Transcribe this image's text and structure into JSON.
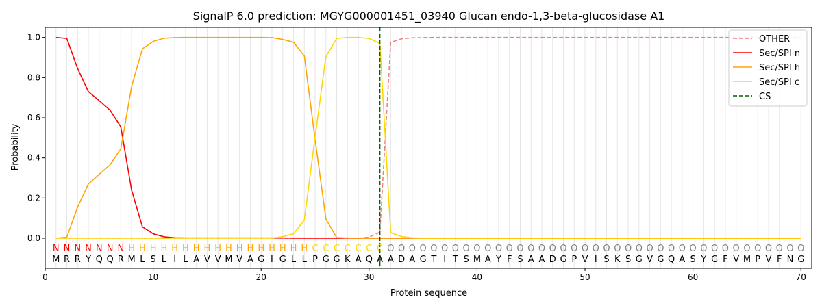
{
  "chart_data": {
    "type": "line",
    "title": "SignalP 6.0 prediction: MGYG000001451_03940 Glucan endo-1,3-beta-glucosidase A1",
    "xlabel": "Protein sequence",
    "ylabel": "Probability",
    "xlim": [
      0,
      71
    ],
    "ylim": [
      -0.15,
      1.05
    ],
    "x_ticks": [
      0,
      10,
      20,
      30,
      40,
      50,
      60,
      70
    ],
    "y_ticks": [
      0.0,
      0.2,
      0.4,
      0.6,
      0.8,
      1.0
    ],
    "grid": "vertical lines at each residue",
    "legend_position": "top-right",
    "sequence": [
      "M",
      "R",
      "R",
      "Y",
      "Q",
      "Q",
      "R",
      "M",
      "L",
      "S",
      "L",
      "I",
      "L",
      "A",
      "V",
      "V",
      "M",
      "V",
      "A",
      "G",
      "I",
      "G",
      "L",
      "L",
      "P",
      "G",
      "G",
      "K",
      "A",
      "Q",
      "A",
      "A",
      "D",
      "A",
      "G",
      "T",
      "I",
      "T",
      "S",
      "M",
      "A",
      "Y",
      "F",
      "S",
      "A",
      "A",
      "D",
      "G",
      "P",
      "V",
      "I",
      "S",
      "K",
      "S",
      "G",
      "V",
      "G",
      "Q",
      "A",
      "S",
      "Y",
      "G",
      "F",
      "V",
      "M",
      "P",
      "V",
      "F",
      "N",
      "G"
    ],
    "region_labels": [
      "N",
      "N",
      "N",
      "N",
      "N",
      "N",
      "N",
      "H",
      "H",
      "H",
      "H",
      "H",
      "H",
      "H",
      "H",
      "H",
      "H",
      "H",
      "H",
      "H",
      "H",
      "H",
      "H",
      "H",
      "C",
      "C",
      "C",
      "C",
      "C",
      "C",
      "C",
      "O",
      "O",
      "O",
      "O",
      "O",
      "O",
      "O",
      "O",
      "O",
      "O",
      "O",
      "O",
      "O",
      "O",
      "O",
      "O",
      "O",
      "O",
      "O",
      "O",
      "O",
      "O",
      "O",
      "O",
      "O",
      "O",
      "O",
      "O",
      "O",
      "O",
      "O",
      "O",
      "O",
      "O",
      "O",
      "O",
      "O",
      "O",
      "O"
    ],
    "region_colors": {
      "N": "#ff0000",
      "H": "#ffa500",
      "C": "#ffd700",
      "O": "#808080"
    },
    "series": [
      {
        "name": "OTHER",
        "color": "#f08080",
        "dash": "dashed",
        "values": [
          0,
          0,
          0,
          0,
          0,
          0,
          0,
          0,
          0,
          0,
          0,
          0,
          0,
          0,
          0,
          0,
          0,
          0,
          0,
          0,
          0,
          0,
          0,
          0,
          0,
          0,
          0,
          0,
          0,
          0.005,
          0.03,
          0.975,
          0.993,
          0.998,
          0.999,
          1,
          1,
          1,
          1,
          1,
          1,
          1,
          1,
          1,
          1,
          1,
          1,
          1,
          1,
          1,
          1,
          1,
          1,
          1,
          1,
          1,
          1,
          1,
          1,
          1,
          1,
          1,
          1,
          1,
          1,
          1,
          1,
          1,
          1,
          1
        ]
      },
      {
        "name": "Sec/SPI n",
        "color": "#ff0000",
        "dash": "solid",
        "values": [
          1.0,
          0.995,
          0.845,
          0.73,
          0.685,
          0.638,
          0.555,
          0.24,
          0.057,
          0.022,
          0.007,
          0.002,
          0.001,
          0.001,
          0.001,
          0.001,
          0.001,
          0.001,
          0.001,
          0.001,
          0.001,
          0.001,
          0,
          0,
          0,
          0,
          0,
          0,
          0,
          0,
          0,
          0,
          0,
          0,
          0,
          0,
          0,
          0,
          0,
          0,
          0,
          0,
          0,
          0,
          0,
          0,
          0,
          0,
          0,
          0,
          0,
          0,
          0,
          0,
          0,
          0,
          0,
          0,
          0,
          0,
          0,
          0,
          0,
          0,
          0,
          0,
          0,
          0,
          0,
          0
        ]
      },
      {
        "name": "Sec/SPI h",
        "color": "#ffa500",
        "dash": "solid",
        "values": [
          0,
          0.005,
          0.155,
          0.27,
          0.318,
          0.365,
          0.445,
          0.755,
          0.943,
          0.98,
          0.996,
          0.999,
          1.0,
          1.0,
          1.0,
          1.0,
          1.0,
          1.0,
          1.0,
          1.0,
          0.999,
          0.99,
          0.976,
          0.908,
          0.492,
          0.095,
          0.003,
          0.001,
          0,
          0,
          0,
          0,
          0,
          0,
          0,
          0,
          0,
          0,
          0,
          0,
          0,
          0,
          0,
          0,
          0,
          0,
          0,
          0,
          0,
          0,
          0,
          0,
          0,
          0,
          0,
          0,
          0,
          0,
          0,
          0,
          0,
          0,
          0,
          0,
          0,
          0,
          0,
          0,
          0,
          0
        ]
      },
      {
        "name": "Sec/SPI c",
        "color": "#ffd700",
        "dash": "solid",
        "values": [
          0,
          0,
          0,
          0,
          0,
          0,
          0,
          0,
          0,
          0,
          0,
          0,
          0,
          0,
          0,
          0,
          0,
          0,
          0,
          0,
          0,
          0.008,
          0.022,
          0.09,
          0.505,
          0.905,
          0.995,
          1.0,
          1.0,
          0.995,
          0.97,
          0.028,
          0.008,
          0.002,
          0,
          0,
          0,
          0,
          0,
          0,
          0,
          0,
          0,
          0,
          0,
          0,
          0,
          0,
          0,
          0,
          0,
          0,
          0,
          0,
          0,
          0,
          0,
          0,
          0,
          0,
          0,
          0,
          0,
          0,
          0,
          0,
          0,
          0,
          0,
          0
        ]
      }
    ],
    "cleavage_site": {
      "name": "CS",
      "x": 31,
      "color": "#006400",
      "dash": "dashed"
    }
  }
}
